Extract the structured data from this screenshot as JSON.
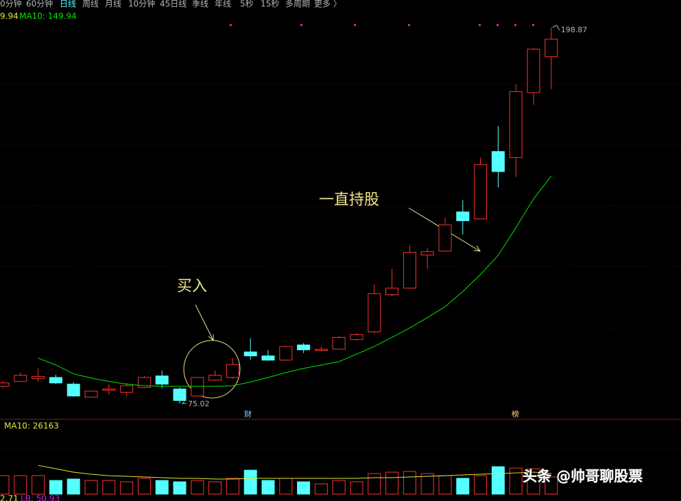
{
  "toolbar": {
    "tabs": [
      "0分钟",
      "60分钟",
      "日线",
      "周线",
      "月线",
      "10分钟",
      "45日线",
      "季线",
      "年线",
      "5秒",
      "15秒",
      "多周期",
      "更多 〉"
    ],
    "active": 2
  },
  "chart_data": {
    "type": "candlestick",
    "prefix": "9.94",
    "ma_label": "MA10: 149.94",
    "ylim": [
      72.3,
      201.1
    ],
    "up_color": "#ff3232",
    "down_color": "#54ffff",
    "candles": [
      {
        "open": 80.7,
        "high": 82.5,
        "low": 80.0,
        "close": 81.8
      },
      {
        "open": 82.3,
        "high": 85.2,
        "low": 82.3,
        "close": 84.3
      },
      {
        "open": 83.2,
        "high": 86.6,
        "low": 82.3,
        "close": 83.9
      },
      {
        "open": 83.6,
        "high": 84.5,
        "low": 81.4,
        "close": 81.8
      },
      {
        "open": 81.4,
        "high": 82.1,
        "low": 77.3,
        "close": 77.5
      },
      {
        "open": 77.1,
        "high": 79.1,
        "low": 77.1,
        "close": 79.1
      },
      {
        "open": 79.4,
        "high": 81.4,
        "low": 78.0,
        "close": 79.8
      },
      {
        "open": 78.7,
        "high": 81.8,
        "low": 77.3,
        "close": 80.9
      },
      {
        "open": 80.3,
        "high": 84.1,
        "low": 80.0,
        "close": 83.6
      },
      {
        "open": 84.1,
        "high": 85.9,
        "low": 80.0,
        "close": 81.4
      },
      {
        "open": 79.8,
        "high": 80.3,
        "low": 75.02,
        "close": 76.0
      },
      {
        "open": 77.5,
        "high": 83.6,
        "low": 77.3,
        "close": 83.6
      },
      {
        "open": 82.7,
        "high": 85.9,
        "low": 82.5,
        "close": 84.3
      },
      {
        "open": 83.6,
        "high": 90.0,
        "low": 83.2,
        "close": 87.9
      },
      {
        "open": 92.0,
        "high": 96.5,
        "low": 89.5,
        "close": 90.7
      },
      {
        "open": 90.7,
        "high": 92.7,
        "low": 89.1,
        "close": 89.3
      },
      {
        "open": 89.3,
        "high": 93.8,
        "low": 89.3,
        "close": 93.8
      },
      {
        "open": 94.3,
        "high": 94.9,
        "low": 91.6,
        "close": 92.7
      },
      {
        "open": 92.5,
        "high": 93.8,
        "low": 92.2,
        "close": 92.9
      },
      {
        "open": 92.9,
        "high": 97.2,
        "low": 92.9,
        "close": 96.8
      },
      {
        "open": 96.1,
        "high": 98.3,
        "low": 95.6,
        "close": 97.7
      },
      {
        "open": 98.6,
        "high": 114.2,
        "low": 98.1,
        "close": 111.2
      },
      {
        "open": 110.8,
        "high": 119.4,
        "low": 110.3,
        "close": 113.0
      },
      {
        "open": 113.0,
        "high": 127.0,
        "low": 113.0,
        "close": 124.8
      },
      {
        "open": 123.9,
        "high": 126.1,
        "low": 119.4,
        "close": 125.0
      },
      {
        "open": 125.2,
        "high": 136.1,
        "low": 125.0,
        "close": 133.8
      },
      {
        "open": 138.1,
        "high": 142.0,
        "low": 130.7,
        "close": 135.2
      },
      {
        "open": 135.8,
        "high": 156.0,
        "low": 135.8,
        "close": 153.7
      },
      {
        "open": 158.0,
        "high": 166.4,
        "low": 146.2,
        "close": 151.4
      },
      {
        "open": 156.0,
        "high": 180.1,
        "low": 149.6,
        "close": 177.7
      },
      {
        "open": 177.4,
        "high": 192.1,
        "low": 173.4,
        "close": 191.7
      },
      {
        "open": 189.2,
        "high": 198.87,
        "low": 178.5,
        "close": 195.0
      }
    ],
    "ma": {
      "color": "#00e600",
      "values": [
        null,
        null,
        90.0,
        87.7,
        84.8,
        83.4,
        82.3,
        81.4,
        80.9,
        80.7,
        80.7,
        80.7,
        80.7,
        80.9,
        82.1,
        83.6,
        85.2,
        86.6,
        87.7,
        88.8,
        91.3,
        93.8,
        96.8,
        99.9,
        103.3,
        106.9,
        111.9,
        117.5,
        123.8,
        132.9,
        142.4,
        149.94
      ]
    },
    "high_candle": 31,
    "low_candle": 10,
    "annotations": [
      "买入",
      "一直持股"
    ],
    "markers": [
      "财",
      "榜"
    ],
    "volume": {
      "label": "MA10: 26163",
      "ylim": [
        0,
        96000
      ],
      "ma_color": "#e6e632",
      "values": [
        23500,
        23500,
        23500,
        17400,
        19200,
        17400,
        17400,
        15700,
        20100,
        17400,
        15700,
        17400,
        15700,
        20100,
        30500,
        17400,
        20100,
        15700,
        13100,
        17400,
        15700,
        26200,
        27900,
        28800,
        26200,
        23500,
        20100,
        23500,
        34900,
        33100,
        32300,
        21800
      ],
      "ma_values": [
        null,
        null,
        36600,
        32300,
        27900,
        25300,
        23500,
        22700,
        21800,
        20900,
        20100,
        20100,
        19200,
        19200,
        20100,
        20100,
        20100,
        20100,
        20100,
        20100,
        20100,
        20900,
        20900,
        21800,
        22700,
        23500,
        24400,
        25300,
        26200,
        27000,
        27900,
        26163
      ],
      "footer": [
        "2.71",
        "LB: 50.93"
      ]
    }
  },
  "watermark": "头条 @帅哥聊股票"
}
